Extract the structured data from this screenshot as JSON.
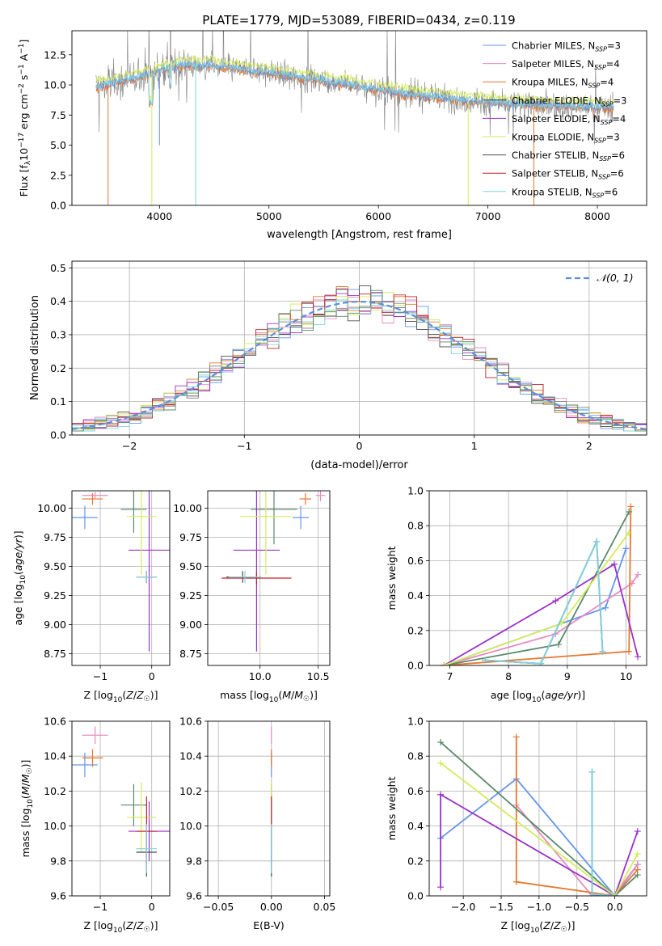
{
  "figure_title": "PLATE=1779, MJD=53089, FIBERID=0434, z=0.119",
  "colors": {
    "chabrier_miles": "#6495ed",
    "salpeter_miles": "#e78ac3",
    "kroupa_miles": "#e6772e",
    "chabrier_elodie": "#4a4a4a",
    "salpeter_elodie": "#9932cc",
    "kroupa_elodie": "#d4eb5a",
    "chabrier_stelib": "#808080",
    "salpeter_stelib": "#c0202a",
    "kroupa_stelib": "#7fd3e0",
    "stelib_green": "#5a8a6a",
    "normal_curve": "#5b8fdb"
  },
  "chart_data": [
    {
      "id": "spectrum",
      "type": "line",
      "title": "PLATE=1779, MJD=53089, FIBERID=0434, z=0.119",
      "xlabel": "wavelength [Angstrom, rest frame]",
      "ylabel": "Flux [f_λ 10^-17 erg cm^-2 s^-1 A^-1]",
      "xlim": [
        3200,
        8450
      ],
      "ylim": [
        0,
        14.5
      ],
      "xticks": [
        4000,
        5000,
        6000,
        7000,
        8000
      ],
      "yticks": [
        "0.0",
        "2.5",
        "5.0",
        "7.5",
        "10.0",
        "12.5"
      ],
      "grid": false,
      "legend_position": "top-right",
      "legend": [
        {
          "label": "Chabrier MILES, N",
          "sub": "SSP",
          "tail": "=3",
          "color": "#6495ed"
        },
        {
          "label": "Salpeter MILES, N",
          "sub": "SSP",
          "tail": "=4",
          "color": "#e78ac3"
        },
        {
          "label": "Kroupa MILES, N",
          "sub": "SSP",
          "tail": "=4",
          "color": "#e6772e"
        },
        {
          "label": "Chabrier ELODIE, N",
          "sub": "SSP",
          "tail": "=3",
          "color": "#4a4a4a"
        },
        {
          "label": "Salpeter ELODIE, N",
          "sub": "SSP",
          "tail": "=4",
          "color": "#9932cc"
        },
        {
          "label": "Kroupa ELODIE, N",
          "sub": "SSP",
          "tail": "=3",
          "color": "#d4eb5a"
        },
        {
          "label": "Chabrier STELIB, N",
          "sub": "SSP",
          "tail": "=6",
          "color": "#4a4a4a"
        },
        {
          "label": "Salpeter STELIB, N",
          "sub": "SSP",
          "tail": "=6",
          "color": "#c0202a"
        },
        {
          "label": "Kroupa STELIB, N",
          "sub": "SSP",
          "tail": "=6",
          "color": "#7fd3e0"
        }
      ],
      "data_envelope": {
        "x": [
          3400,
          3600,
          3800,
          4000,
          4200,
          4500,
          4800,
          5000,
          5300,
          5600,
          6000,
          6300,
          6600,
          6900,
          7200,
          7500,
          7800,
          8100
        ],
        "y": [
          9.8,
          10.2,
          10.6,
          11.2,
          11.6,
          11.6,
          11.2,
          11.0,
          10.6,
          10.2,
          9.6,
          9.2,
          8.9,
          8.6,
          8.4,
          8.3,
          8.2,
          8.1
        ]
      }
    },
    {
      "id": "residual_histogram",
      "type": "line",
      "xlabel": "(data-model)/error",
      "ylabel": "Normed distribution",
      "xlim": [
        -2.5,
        2.5
      ],
      "ylim": [
        0,
        0.52
      ],
      "xticks": [
        "−2",
        "−1",
        "0",
        "1",
        "2"
      ],
      "yticks": [
        "0.0",
        "0.1",
        "0.2",
        "0.3",
        "0.4",
        "0.5"
      ],
      "grid": true,
      "legend_position": "top-right",
      "legend": [
        {
          "label": "𝒩(0, 1)",
          "color": "#5b8fdb"
        }
      ],
      "bin_width": 0.1
    },
    {
      "id": "age_vs_Z",
      "type": "scatter",
      "xlabel": "Z [log10(Z/Z☉)]",
      "ylabel": "age [log10(age/yr)]",
      "xlim": [
        -1.55,
        0.35
      ],
      "ylim": [
        8.65,
        10.15
      ],
      "xticks": [
        -1,
        0
      ],
      "xticklabels": [
        "−1",
        "0"
      ],
      "yticks": [
        "8.75",
        "9.00",
        "9.25",
        "9.50",
        "9.75",
        "10.00"
      ],
      "grid": true,
      "points": [
        {
          "series": "Chabrier MILES",
          "x": -1.3,
          "xerr": 0.25,
          "y": 9.92,
          "yerr": 0.1,
          "color": "#6495ed"
        },
        {
          "series": "Salpeter MILES",
          "x": -1.1,
          "xerr": 0.25,
          "y": 10.11,
          "yerr": 0.03,
          "color": "#e78ac3"
        },
        {
          "series": "Kroupa MILES",
          "x": -1.15,
          "xerr": 0.2,
          "y": 10.08,
          "yerr": 0.05,
          "color": "#e6772e"
        },
        {
          "series": "Chabrier ELODIE",
          "x": -0.35,
          "xerr": 0.25,
          "y": 9.99,
          "yerr": 0.2,
          "color": "#5a8a6a"
        },
        {
          "series": "Salpeter ELODIE",
          "x": -0.05,
          "xerr": 0.4,
          "y": 9.64,
          "yerr": 0.87,
          "color": "#9932cc"
        },
        {
          "series": "Kroupa ELODIE",
          "x": -0.2,
          "xerr": 0.28,
          "y": 9.93,
          "yerr": 0.5,
          "color": "#d4eb5a"
        },
        {
          "series": "Chabrier STELIB",
          "x": -0.1,
          "xerr": 0.2,
          "y": 9.41,
          "yerr": 0.05,
          "color": "#4a4a4a"
        },
        {
          "series": "Salpeter STELIB",
          "x": -0.1,
          "xerr": 0.2,
          "y": 9.41,
          "yerr": 0.05,
          "color": "#c0202a"
        },
        {
          "series": "Kroupa STELIB",
          "x": -0.1,
          "xerr": 0.2,
          "y": 9.41,
          "yerr": 0.05,
          "color": "#7fd3e0"
        }
      ]
    },
    {
      "id": "age_vs_mass",
      "type": "scatter",
      "xlabel": "mass [log10(M/M☉)]",
      "ylabel": "",
      "xlim": [
        9.55,
        10.6
      ],
      "ylim": [
        8.65,
        10.15
      ],
      "xticks": [
        10.0,
        10.5
      ],
      "xticklabels": [
        "10.0",
        "10.5"
      ],
      "yticks": [
        "8.75",
        "9.00",
        "9.25",
        "9.50",
        "9.75",
        "10.00"
      ],
      "grid": true,
      "points": [
        {
          "series": "Chabrier MILES",
          "x": 10.35,
          "xerr": 0.07,
          "y": 9.92,
          "yerr": 0.1,
          "color": "#6495ed"
        },
        {
          "series": "Salpeter MILES",
          "x": 10.52,
          "xerr": 0.04,
          "y": 10.11,
          "yerr": 0.05,
          "color": "#e78ac3"
        },
        {
          "series": "Kroupa MILES",
          "x": 10.39,
          "xerr": 0.05,
          "y": 10.08,
          "yerr": 0.05,
          "color": "#e6772e"
        },
        {
          "series": "Chabrier ELODIE",
          "x": 10.12,
          "xerr": 0.2,
          "y": 9.99,
          "yerr": 0.3,
          "color": "#5a8a6a"
        },
        {
          "series": "Salpeter ELODIE",
          "x": 9.97,
          "xerr": 0.2,
          "y": 9.64,
          "yerr": 0.87,
          "color": "#9932cc"
        },
        {
          "series": "Kroupa ELODIE",
          "x": 10.05,
          "xerr": 0.22,
          "y": 9.93,
          "yerr": 0.5,
          "color": "#d4eb5a"
        },
        {
          "series": "Chabrier STELIB",
          "x": 9.85,
          "xerr": 0.14,
          "y": 9.41,
          "yerr": 0.05,
          "color": "#4a4a4a"
        },
        {
          "series": "Salpeter STELIB",
          "x": 9.97,
          "xerr": 0.3,
          "y": 9.4,
          "yerr": 0.05,
          "color": "#c0202a"
        },
        {
          "series": "Kroupa STELIB",
          "x": 9.87,
          "xerr": 0.14,
          "y": 9.41,
          "yerr": 0.05,
          "color": "#7fd3e0"
        }
      ]
    },
    {
      "id": "massweight_vs_age",
      "type": "line",
      "xlabel": "age [log10(age/yr)]",
      "ylabel": "mass weight",
      "xlim": [
        6.65,
        10.35
      ],
      "ylim": [
        0,
        1.0
      ],
      "xticks": [
        "7",
        "8",
        "9",
        "10"
      ],
      "yticks": [
        "0.0",
        "0.2",
        "0.4",
        "0.6",
        "0.8",
        "1.0"
      ],
      "grid": true,
      "series": [
        {
          "name": "Chabrier MILES",
          "color": "#6495ed",
          "x": [
            6.9,
            9.65,
            10.0
          ],
          "y": [
            0.0,
            0.33,
            0.67
          ]
        },
        {
          "name": "Salpeter MILES",
          "color": "#e78ac3",
          "x": [
            6.9,
            8.8,
            10.1,
            10.2
          ],
          "y": [
            0.0,
            0.18,
            0.47,
            0.52
          ]
        },
        {
          "name": "Kroupa MILES",
          "color": "#e6772e",
          "x": [
            6.9,
            10.05,
            10.08
          ],
          "y": [
            0.0,
            0.08,
            0.91
          ]
        },
        {
          "name": "Chabrier ELODIE",
          "color": "#5a8a6a",
          "x": [
            6.9,
            8.85,
            10.05
          ],
          "y": [
            0.0,
            0.12,
            0.88
          ]
        },
        {
          "name": "Salpeter ELODIE",
          "color": "#9932cc",
          "x": [
            6.9,
            8.8,
            9.8,
            10.2
          ],
          "y": [
            0.0,
            0.37,
            0.58,
            0.05
          ]
        },
        {
          "name": "Kroupa ELODIE",
          "color": "#d4eb5a",
          "x": [
            6.9,
            8.9,
            10.05
          ],
          "y": [
            0.0,
            0.24,
            0.76
          ]
        },
        {
          "name": "Chabrier STELIB",
          "color": "#4a4a4a",
          "x": [
            7.6,
            8.55,
            9.5,
            9.6
          ],
          "y": [
            0.03,
            0.01,
            0.71,
            0.08
          ]
        },
        {
          "name": "Kroupa STELIB",
          "color": "#7fd3e0",
          "x": [
            7.6,
            8.55,
            9.5,
            9.6
          ],
          "y": [
            0.03,
            0.01,
            0.71,
            0.08
          ]
        }
      ]
    },
    {
      "id": "mass_vs_Z",
      "type": "scatter",
      "xlabel": "Z [log10(Z/Z☉)]",
      "ylabel": "mass [log10(M/M☉)]",
      "xlim": [
        -1.55,
        0.35
      ],
      "ylim": [
        9.6,
        10.6
      ],
      "xticks": [
        -1,
        0
      ],
      "xticklabels": [
        "−1",
        "0"
      ],
      "yticks": [
        "9.6",
        "9.8",
        "10.0",
        "10.2",
        "10.4",
        "10.6"
      ],
      "grid": true,
      "points": [
        {
          "series": "Chabrier MILES",
          "x": -1.3,
          "xerr": 0.25,
          "y": 10.35,
          "yerr": 0.07,
          "color": "#6495ed"
        },
        {
          "series": "Salpeter MILES",
          "x": -1.1,
          "xerr": 0.25,
          "y": 10.52,
          "yerr": 0.05,
          "color": "#e78ac3"
        },
        {
          "series": "Kroupa MILES",
          "x": -1.15,
          "xerr": 0.2,
          "y": 10.39,
          "yerr": 0.05,
          "color": "#e6772e"
        },
        {
          "series": "Chabrier ELODIE",
          "x": -0.35,
          "xerr": 0.25,
          "y": 10.12,
          "yerr": 0.12,
          "color": "#5a8a6a"
        },
        {
          "series": "Salpeter ELODIE",
          "x": -0.05,
          "xerr": 0.4,
          "y": 9.97,
          "yerr": 0.17,
          "color": "#9932cc"
        },
        {
          "series": "Kroupa ELODIE",
          "x": -0.2,
          "xerr": 0.28,
          "y": 10.05,
          "yerr": 0.2,
          "color": "#d4eb5a"
        },
        {
          "series": "Chabrier STELIB",
          "x": -0.1,
          "xerr": 0.2,
          "y": 9.85,
          "yerr": 0.14,
          "color": "#4a4a4a"
        },
        {
          "series": "Salpeter STELIB",
          "x": -0.1,
          "xerr": 0.2,
          "y": 9.97,
          "yerr": 0.2,
          "color": "#c0202a"
        },
        {
          "series": "Kroupa STELIB",
          "x": -0.1,
          "xerr": 0.2,
          "y": 9.87,
          "yerr": 0.14,
          "color": "#7fd3e0"
        }
      ]
    },
    {
      "id": "mass_vs_ebv",
      "type": "scatter",
      "xlabel": "E(B-V)",
      "ylabel": "",
      "xlim": [
        -0.06,
        0.055
      ],
      "ylim": [
        9.6,
        10.6
      ],
      "xticks": [
        -0.05,
        0.0,
        0.05
      ],
      "xticklabels": [
        "−0.05",
        "0.00",
        "0.05"
      ],
      "yticks": [
        "9.6",
        "9.8",
        "10.0",
        "10.2",
        "10.4",
        "10.6"
      ],
      "grid": true,
      "points": [
        {
          "series": "Chabrier MILES",
          "x": 0.0,
          "xerr": 0,
          "y": 10.35,
          "yerr": 0.07,
          "color": "#6495ed"
        },
        {
          "series": "Salpeter MILES",
          "x": 0.0,
          "xerr": 0,
          "y": 10.52,
          "yerr": 0.05,
          "color": "#e78ac3"
        },
        {
          "series": "Kroupa MILES",
          "x": 0.0,
          "xerr": 0,
          "y": 10.39,
          "yerr": 0.05,
          "color": "#e6772e"
        },
        {
          "series": "Chabrier ELODIE",
          "x": 0.0,
          "xerr": 0,
          "y": 10.12,
          "yerr": 0.12,
          "color": "#5a8a6a"
        },
        {
          "series": "Salpeter ELODIE",
          "x": 0.0,
          "xerr": 0,
          "y": 9.97,
          "yerr": 0.17,
          "color": "#9932cc"
        },
        {
          "series": "Kroupa ELODIE",
          "x": 0.0,
          "xerr": 0,
          "y": 10.05,
          "yerr": 0.2,
          "color": "#d4eb5a"
        },
        {
          "series": "Chabrier STELIB",
          "x": 0.0,
          "xerr": 0,
          "y": 9.85,
          "yerr": 0.14,
          "color": "#4a4a4a"
        },
        {
          "series": "Salpeter STELIB",
          "x": 0.0,
          "xerr": 0,
          "y": 9.97,
          "yerr": 0.2,
          "color": "#c0202a"
        },
        {
          "series": "Kroupa STELIB",
          "x": 0.0,
          "xerr": 0,
          "y": 9.87,
          "yerr": 0.14,
          "color": "#7fd3e0"
        }
      ]
    },
    {
      "id": "massweight_vs_Z",
      "type": "line",
      "xlabel": "Z [log10(Z/Z☉)]",
      "ylabel": "mass weight",
      "xlim": [
        -2.45,
        0.42
      ],
      "ylim": [
        0,
        1.0
      ],
      "xticks": [
        "−2.0",
        "−1.5",
        "−1.0",
        "−0.5",
        "0.0"
      ],
      "yticks": [
        "0.0",
        "0.2",
        "0.4",
        "0.6",
        "0.8",
        "1.0"
      ],
      "grid": true,
      "series": [
        {
          "name": "Chabrier MILES",
          "color": "#6495ed",
          "x": [
            -2.3,
            -1.3,
            0.0,
            0.3
          ],
          "y": [
            0.33,
            0.67,
            0.0,
            0.18
          ]
        },
        {
          "name": "Salpeter MILES",
          "color": "#e78ac3",
          "x": [
            -1.3,
            -0.3,
            0.0,
            0.3
          ],
          "y": [
            0.52,
            0.0,
            0.01,
            0.18
          ]
        },
        {
          "name": "Kroupa MILES",
          "color": "#e6772e",
          "x": [
            -1.3,
            -1.3,
            0.0,
            0.3
          ],
          "y": [
            0.91,
            0.08,
            0.0,
            0.15
          ]
        },
        {
          "name": "Chabrier ELODIE",
          "color": "#5a8a6a",
          "x": [
            -2.3,
            0.0,
            0.3
          ],
          "y": [
            0.88,
            0.0,
            0.12
          ]
        },
        {
          "name": "Salpeter ELODIE",
          "color": "#9932cc",
          "x": [
            -2.3,
            -2.3,
            0.0,
            0.3
          ],
          "y": [
            0.05,
            0.58,
            0.0,
            0.37
          ]
        },
        {
          "name": "Kroupa ELODIE",
          "color": "#d4eb5a",
          "x": [
            -2.3,
            0.0,
            0.3
          ],
          "y": [
            0.76,
            0.0,
            0.24
          ]
        },
        {
          "name": "Chabrier STELIB",
          "color": "#4a4a4a",
          "x": [
            -0.3,
            -0.3,
            0.0
          ],
          "y": [
            0.71,
            0.01,
            0.0
          ]
        },
        {
          "name": "Kroupa STELIB",
          "color": "#7fd3e0",
          "x": [
            -0.3,
            -0.3,
            0.0
          ],
          "y": [
            0.71,
            0.01,
            0.0
          ]
        }
      ]
    }
  ]
}
